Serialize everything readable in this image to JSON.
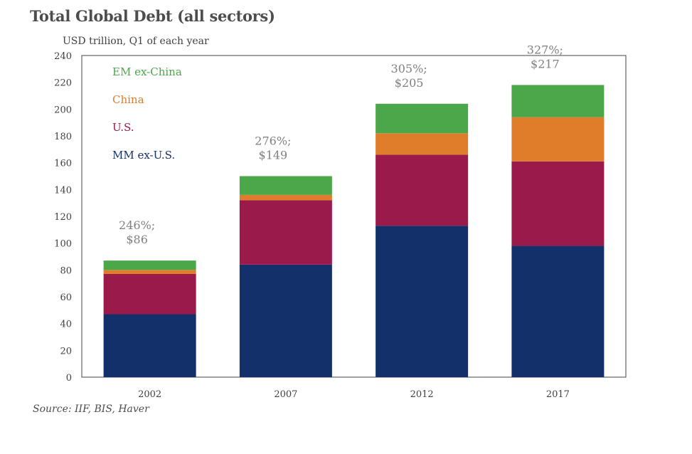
{
  "chart_data": {
    "type": "bar",
    "stacked": true,
    "title": "Total Global Debt (all sectors)",
    "subtitle": "USD trillion, Q1 of each year",
    "source": "Source: IIF, BIS, Haver",
    "categories": [
      "2002",
      "2007",
      "2012",
      "2017"
    ],
    "ylim": [
      0,
      240
    ],
    "yticks": [
      0,
      20,
      40,
      60,
      80,
      100,
      120,
      140,
      160,
      180,
      200,
      220,
      240
    ],
    "series": [
      {
        "name": "MM ex-U.S.",
        "color": "#13306b",
        "values": [
          47,
          84,
          113,
          98
        ]
      },
      {
        "name": "U.S.",
        "color": "#9b1a4c",
        "values": [
          30,
          48,
          53,
          63
        ]
      },
      {
        "name": "China",
        "color": "#e07d2b",
        "values": [
          3,
          4,
          16,
          33
        ]
      },
      {
        "name": "EM ex-China",
        "color": "#4ca74a",
        "values": [
          7,
          14,
          22,
          24
        ]
      }
    ],
    "legend_order": [
      "EM ex-China",
      "China",
      "U.S.",
      "MM ex-U.S."
    ],
    "annotations": [
      {
        "line1": "246%;",
        "line2": "$86"
      },
      {
        "line1": "276%;",
        "line2": "$149"
      },
      {
        "line1": "305%;",
        "line2": "$205"
      },
      {
        "line1": "327%;",
        "line2": "$217"
      }
    ]
  }
}
